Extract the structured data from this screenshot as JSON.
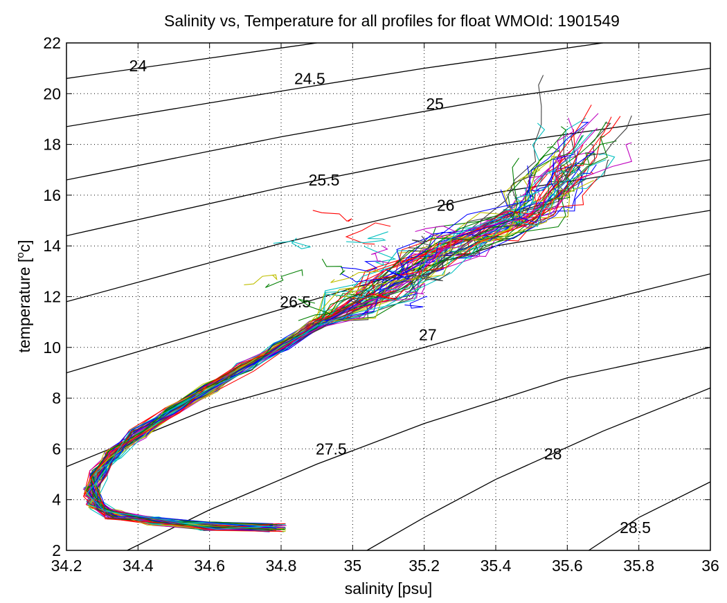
{
  "chart_data": {
    "type": "line",
    "title": "Salinity vs, Temperature for all profiles for float WMOId: 1901549",
    "xlabel": "salinity [psu]",
    "ylabel": "temperature [",
    "ylabel_sup": "o",
    "ylabel_unit": "c]",
    "xlim": [
      34.2,
      36.0
    ],
    "ylim": [
      2,
      22
    ],
    "xticks": [
      34.2,
      34.4,
      34.6,
      34.8,
      35,
      35.2,
      35.4,
      35.6,
      35.8,
      36
    ],
    "xtick_labels": [
      "34.2",
      "34.4",
      "34.6",
      "34.8",
      "35",
      "35.2",
      "35.4",
      "35.6",
      "35.8",
      "36"
    ],
    "yticks": [
      2,
      4,
      6,
      8,
      10,
      12,
      14,
      16,
      18,
      20,
      22
    ],
    "ytick_labels": [
      "2",
      "4",
      "6",
      "8",
      "10",
      "12",
      "14",
      "16",
      "18",
      "20",
      "22"
    ],
    "grid": "dotted",
    "density_contours": [
      {
        "label": "24",
        "label_at": [
          34.4,
          21.1
        ],
        "points": [
          [
            34.2,
            20.6
          ],
          [
            34.8,
            21.8
          ],
          [
            34.9,
            22.0
          ]
        ]
      },
      {
        "label": "24.5",
        "label_at": [
          34.88,
          20.6
        ],
        "points": [
          [
            34.2,
            18.7
          ],
          [
            34.8,
            20.1
          ],
          [
            35.2,
            21.0
          ],
          [
            35.7,
            22.0
          ]
        ]
      },
      {
        "label": "25",
        "label_at": [
          35.23,
          19.6
        ],
        "points": [
          [
            34.2,
            16.6
          ],
          [
            34.8,
            18.3
          ],
          [
            35.4,
            19.8
          ],
          [
            36.0,
            21.0
          ]
        ]
      },
      {
        "label": "25.5",
        "label_at": [
          34.92,
          16.6
        ],
        "points": [
          [
            34.2,
            14.4
          ],
          [
            34.8,
            16.3
          ],
          [
            35.4,
            18.0
          ],
          [
            36.0,
            19.2
          ]
        ]
      },
      {
        "label": "26",
        "label_at": [
          35.26,
          15.6
        ],
        "points": [
          [
            34.2,
            11.8
          ],
          [
            34.8,
            14.1
          ],
          [
            35.4,
            16.1
          ],
          [
            36.0,
            17.4
          ]
        ]
      },
      {
        "label": "26.5",
        "label_at": [
          34.84,
          11.8
        ],
        "points": [
          [
            34.2,
            9.0
          ],
          [
            34.8,
            11.5
          ],
          [
            35.4,
            14.0
          ],
          [
            36.0,
            15.4
          ]
        ]
      },
      {
        "label": "27",
        "label_at": [
          35.21,
          10.5
        ],
        "points": [
          [
            34.2,
            5.3
          ],
          [
            34.6,
            7.6
          ],
          [
            35.0,
            9.2
          ],
          [
            35.4,
            10.8
          ],
          [
            36.0,
            12.9
          ]
        ]
      },
      {
        "label": "27.5",
        "label_at": [
          34.94,
          6.0
        ],
        "points": [
          [
            34.37,
            2.0
          ],
          [
            34.6,
            3.6
          ],
          [
            34.9,
            5.4
          ],
          [
            35.2,
            7.0
          ],
          [
            35.6,
            8.8
          ],
          [
            36.0,
            10.0
          ]
        ]
      },
      {
        "label": "28",
        "label_at": [
          35.56,
          5.8
        ],
        "points": [
          [
            35.04,
            2.0
          ],
          [
            35.2,
            3.3
          ],
          [
            35.4,
            4.8
          ],
          [
            35.7,
            6.7
          ],
          [
            36.0,
            8.4
          ]
        ]
      },
      {
        "label": "28.5",
        "label_at": [
          35.79,
          2.9
        ],
        "points": [
          [
            35.66,
            2.0
          ],
          [
            35.8,
            3.3
          ],
          [
            36.0,
            4.7
          ]
        ]
      }
    ],
    "profile_colors": [
      "#0000ff",
      "#007f00",
      "#ff0000",
      "#00bfbf",
      "#bf00bf",
      "#bfbf00",
      "#3f3f3f"
    ],
    "mean_profile": [
      [
        34.79,
        2.9
      ],
      [
        34.6,
        2.95
      ],
      [
        34.45,
        3.15
      ],
      [
        34.33,
        3.4
      ],
      [
        34.28,
        3.8
      ],
      [
        34.27,
        4.3
      ],
      [
        34.29,
        5.0
      ],
      [
        34.33,
        5.8
      ],
      [
        34.4,
        6.6
      ],
      [
        34.5,
        7.5
      ],
      [
        34.6,
        8.4
      ],
      [
        34.7,
        9.2
      ],
      [
        34.8,
        10.0
      ],
      [
        34.9,
        10.9
      ],
      [
        35.0,
        11.7
      ],
      [
        35.1,
        12.5
      ],
      [
        35.2,
        13.3
      ],
      [
        35.3,
        14.1
      ],
      [
        35.4,
        14.8
      ],
      [
        35.5,
        15.3
      ]
    ]
  }
}
